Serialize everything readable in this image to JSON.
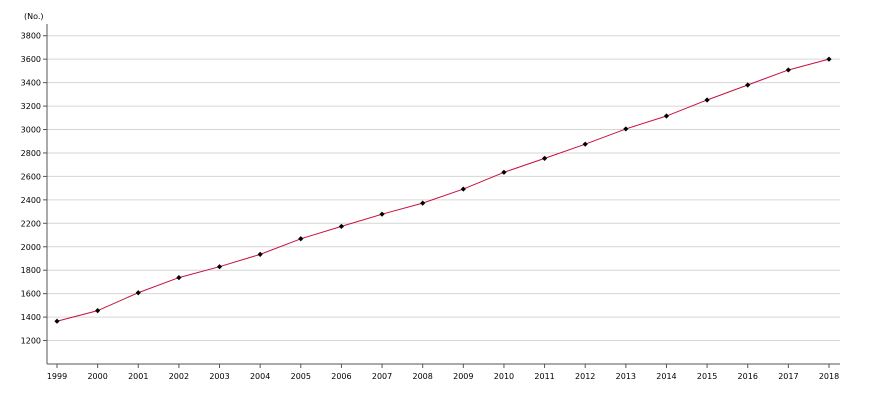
{
  "chart_data": {
    "type": "line",
    "title": "",
    "xlabel": "",
    "ylabel": "(No.)",
    "ylim": [
      1000,
      3900
    ],
    "yticks": [
      1200,
      1400,
      1600,
      1800,
      2000,
      2200,
      2400,
      2600,
      2800,
      3000,
      3200,
      3400,
      3600,
      3800
    ],
    "grid": true,
    "legend": "none",
    "categories": [
      "1999",
      "2000",
      "2001",
      "2002",
      "2003",
      "2004",
      "2005",
      "2006",
      "2007",
      "2008",
      "2009",
      "2010",
      "2011",
      "2012",
      "2013",
      "2014",
      "2015",
      "2016",
      "2017",
      "2018"
    ],
    "series": [
      {
        "values": [
          1365,
          1455,
          1608,
          1737,
          1830,
          1935,
          2068,
          2174,
          2278,
          2372,
          2492,
          2635,
          2754,
          2875,
          3005,
          3115,
          3252,
          3380,
          3508,
          3600
        ],
        "line_color": "#c8103c",
        "marker_color": "#000000"
      }
    ],
    "colors": {
      "grid": "#d6d6d6",
      "axis": "#555555"
    }
  }
}
